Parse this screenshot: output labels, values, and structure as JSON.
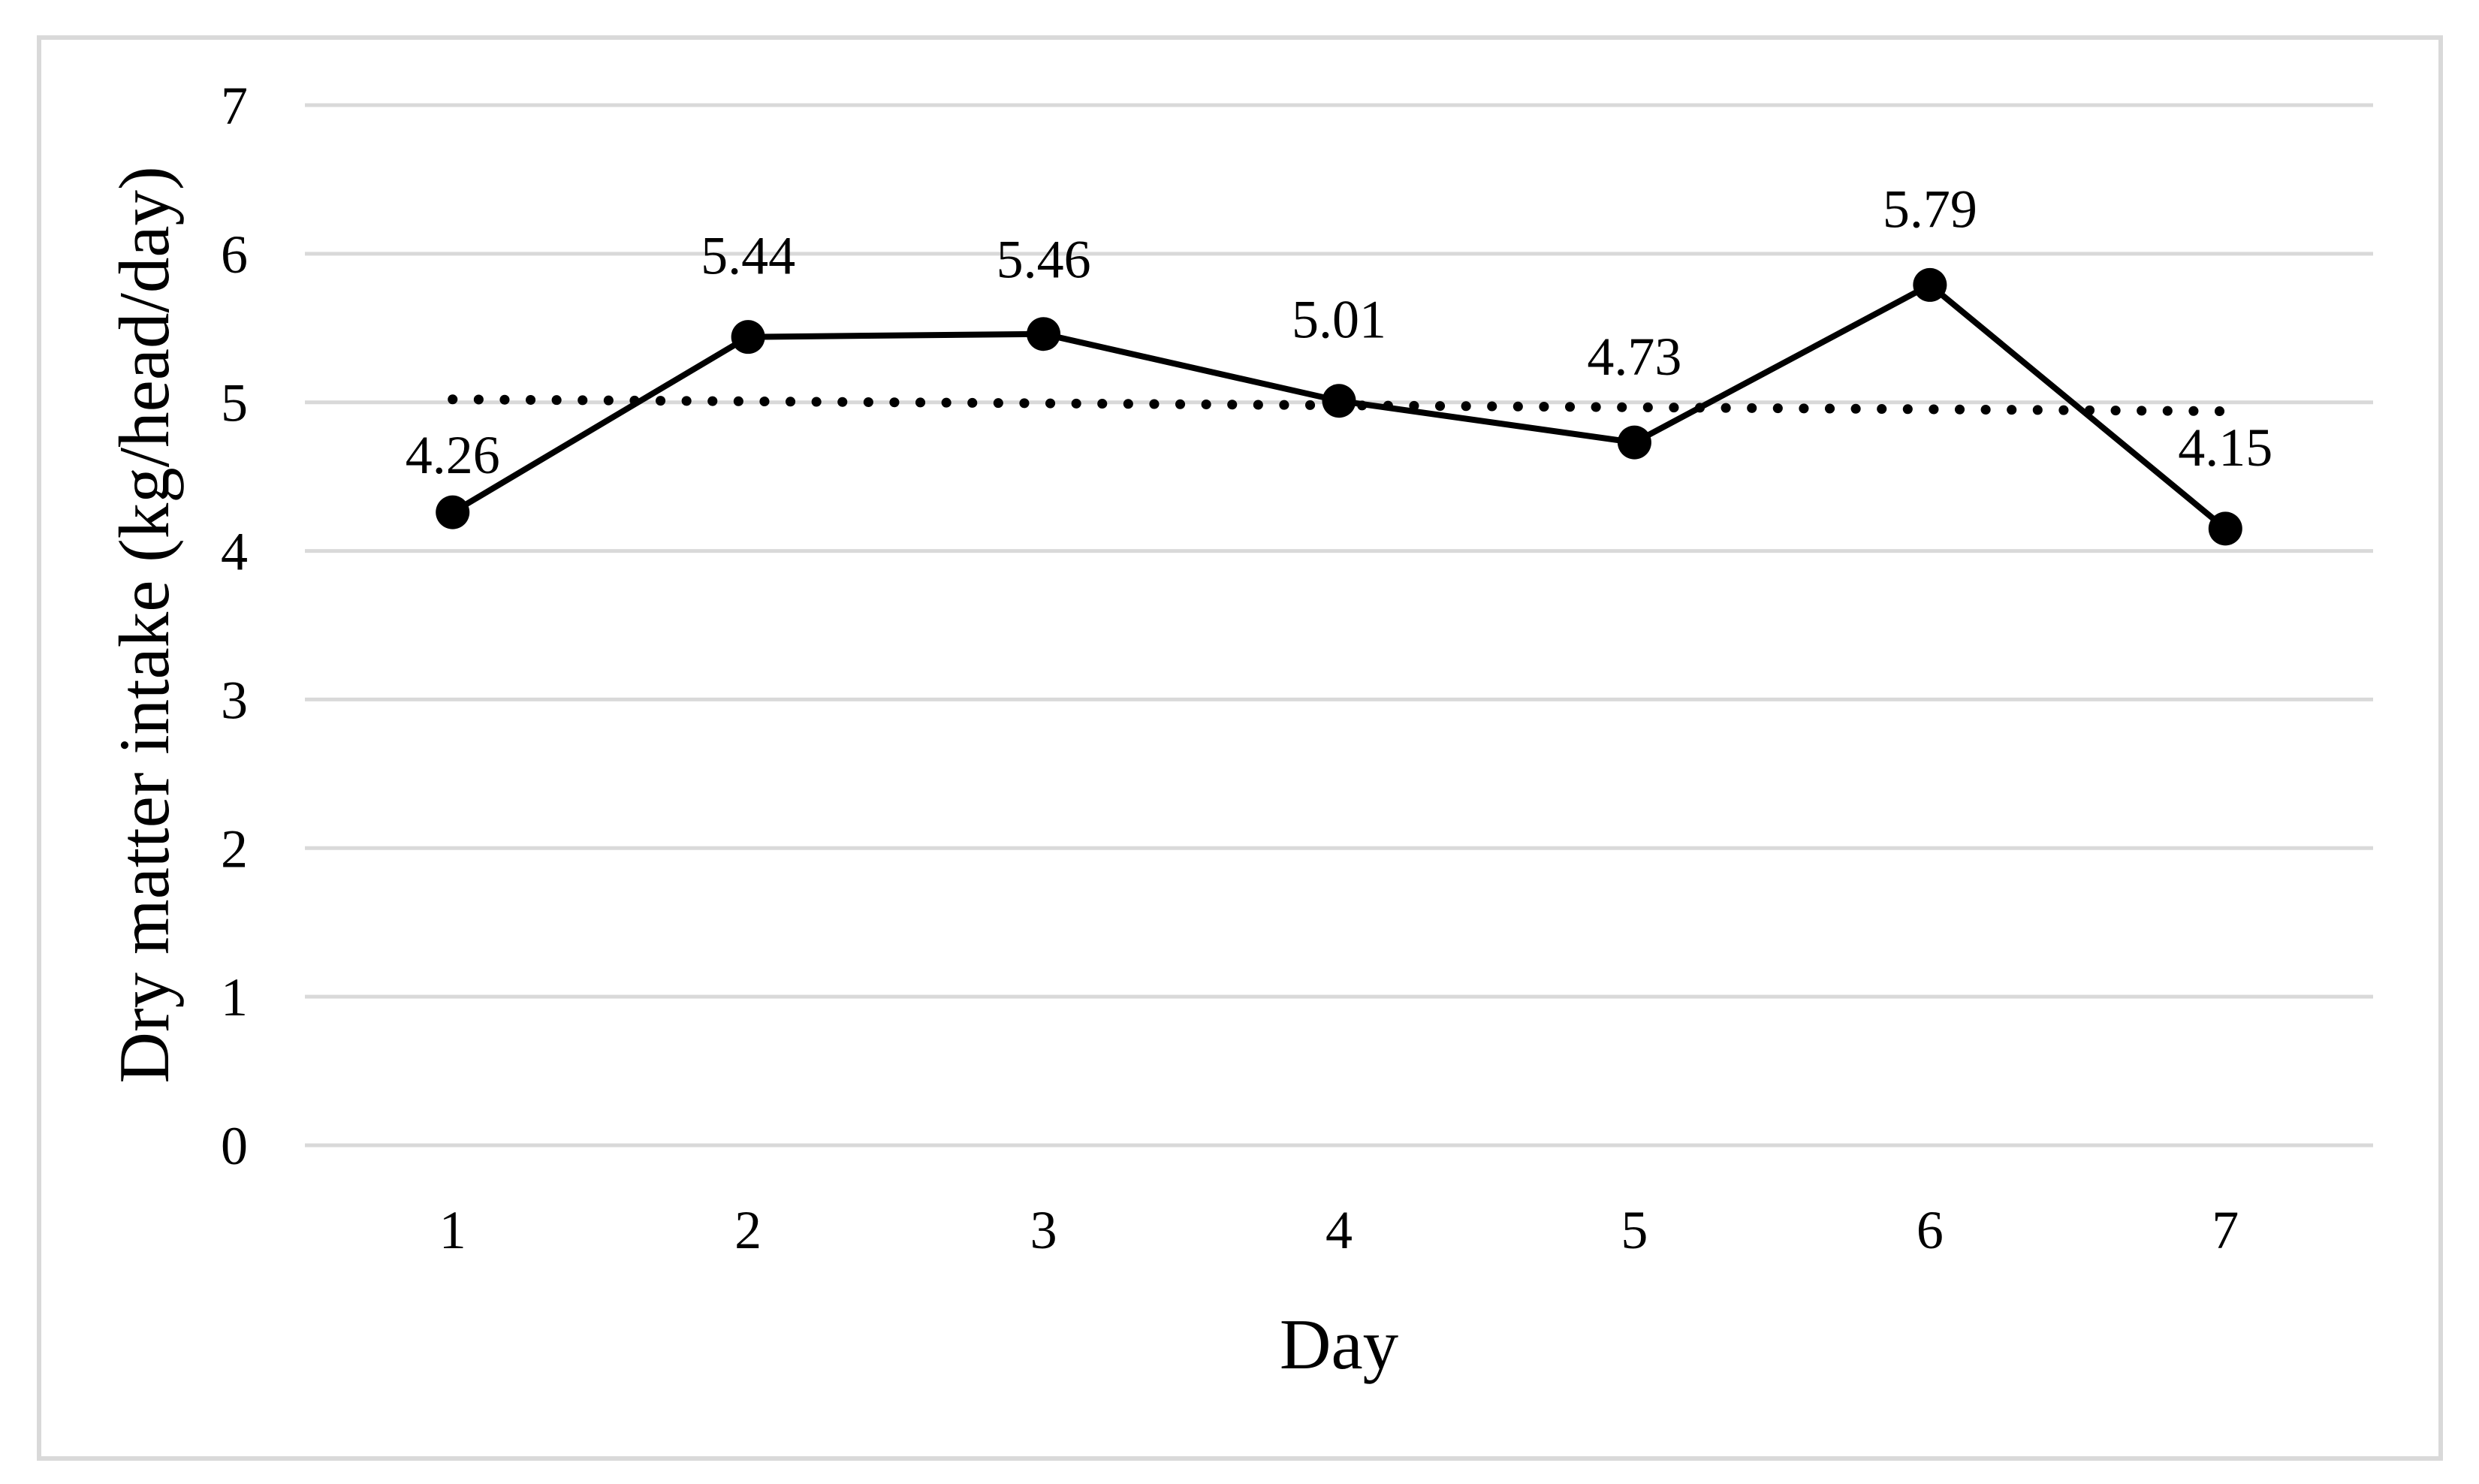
{
  "figure": {
    "background_color": "#ffffff"
  },
  "chart_data": {
    "type": "line",
    "title": "",
    "xlabel": "Day",
    "ylabel": "Dry matter intake (kg/head/day)",
    "categories": [
      "1",
      "2",
      "3",
      "4",
      "5",
      "6",
      "7"
    ],
    "series": [
      {
        "name": "Dry matter intake",
        "values": [
          4.26,
          5.44,
          5.46,
          5.01,
          4.73,
          5.79,
          4.15
        ],
        "data_labels": [
          "4.26",
          "5.44",
          "5.46",
          "5.01",
          "4.73",
          "5.79",
          "4.15"
        ],
        "color": "#000000",
        "marker": "filled-circle",
        "line_style": "solid"
      }
    ],
    "trendline": {
      "type": "linear",
      "line_style": "dotted",
      "color": "#000000",
      "start_value": 5.02,
      "end_value": 4.94
    },
    "ylim": [
      0,
      7
    ],
    "yticks": [
      "0",
      "1",
      "2",
      "3",
      "4",
      "5",
      "6",
      "7"
    ],
    "grid": true,
    "legend": false,
    "gridline_color": "#d9d9d9",
    "frame_color": "#d9d9d9",
    "text_color": "#000000"
  }
}
